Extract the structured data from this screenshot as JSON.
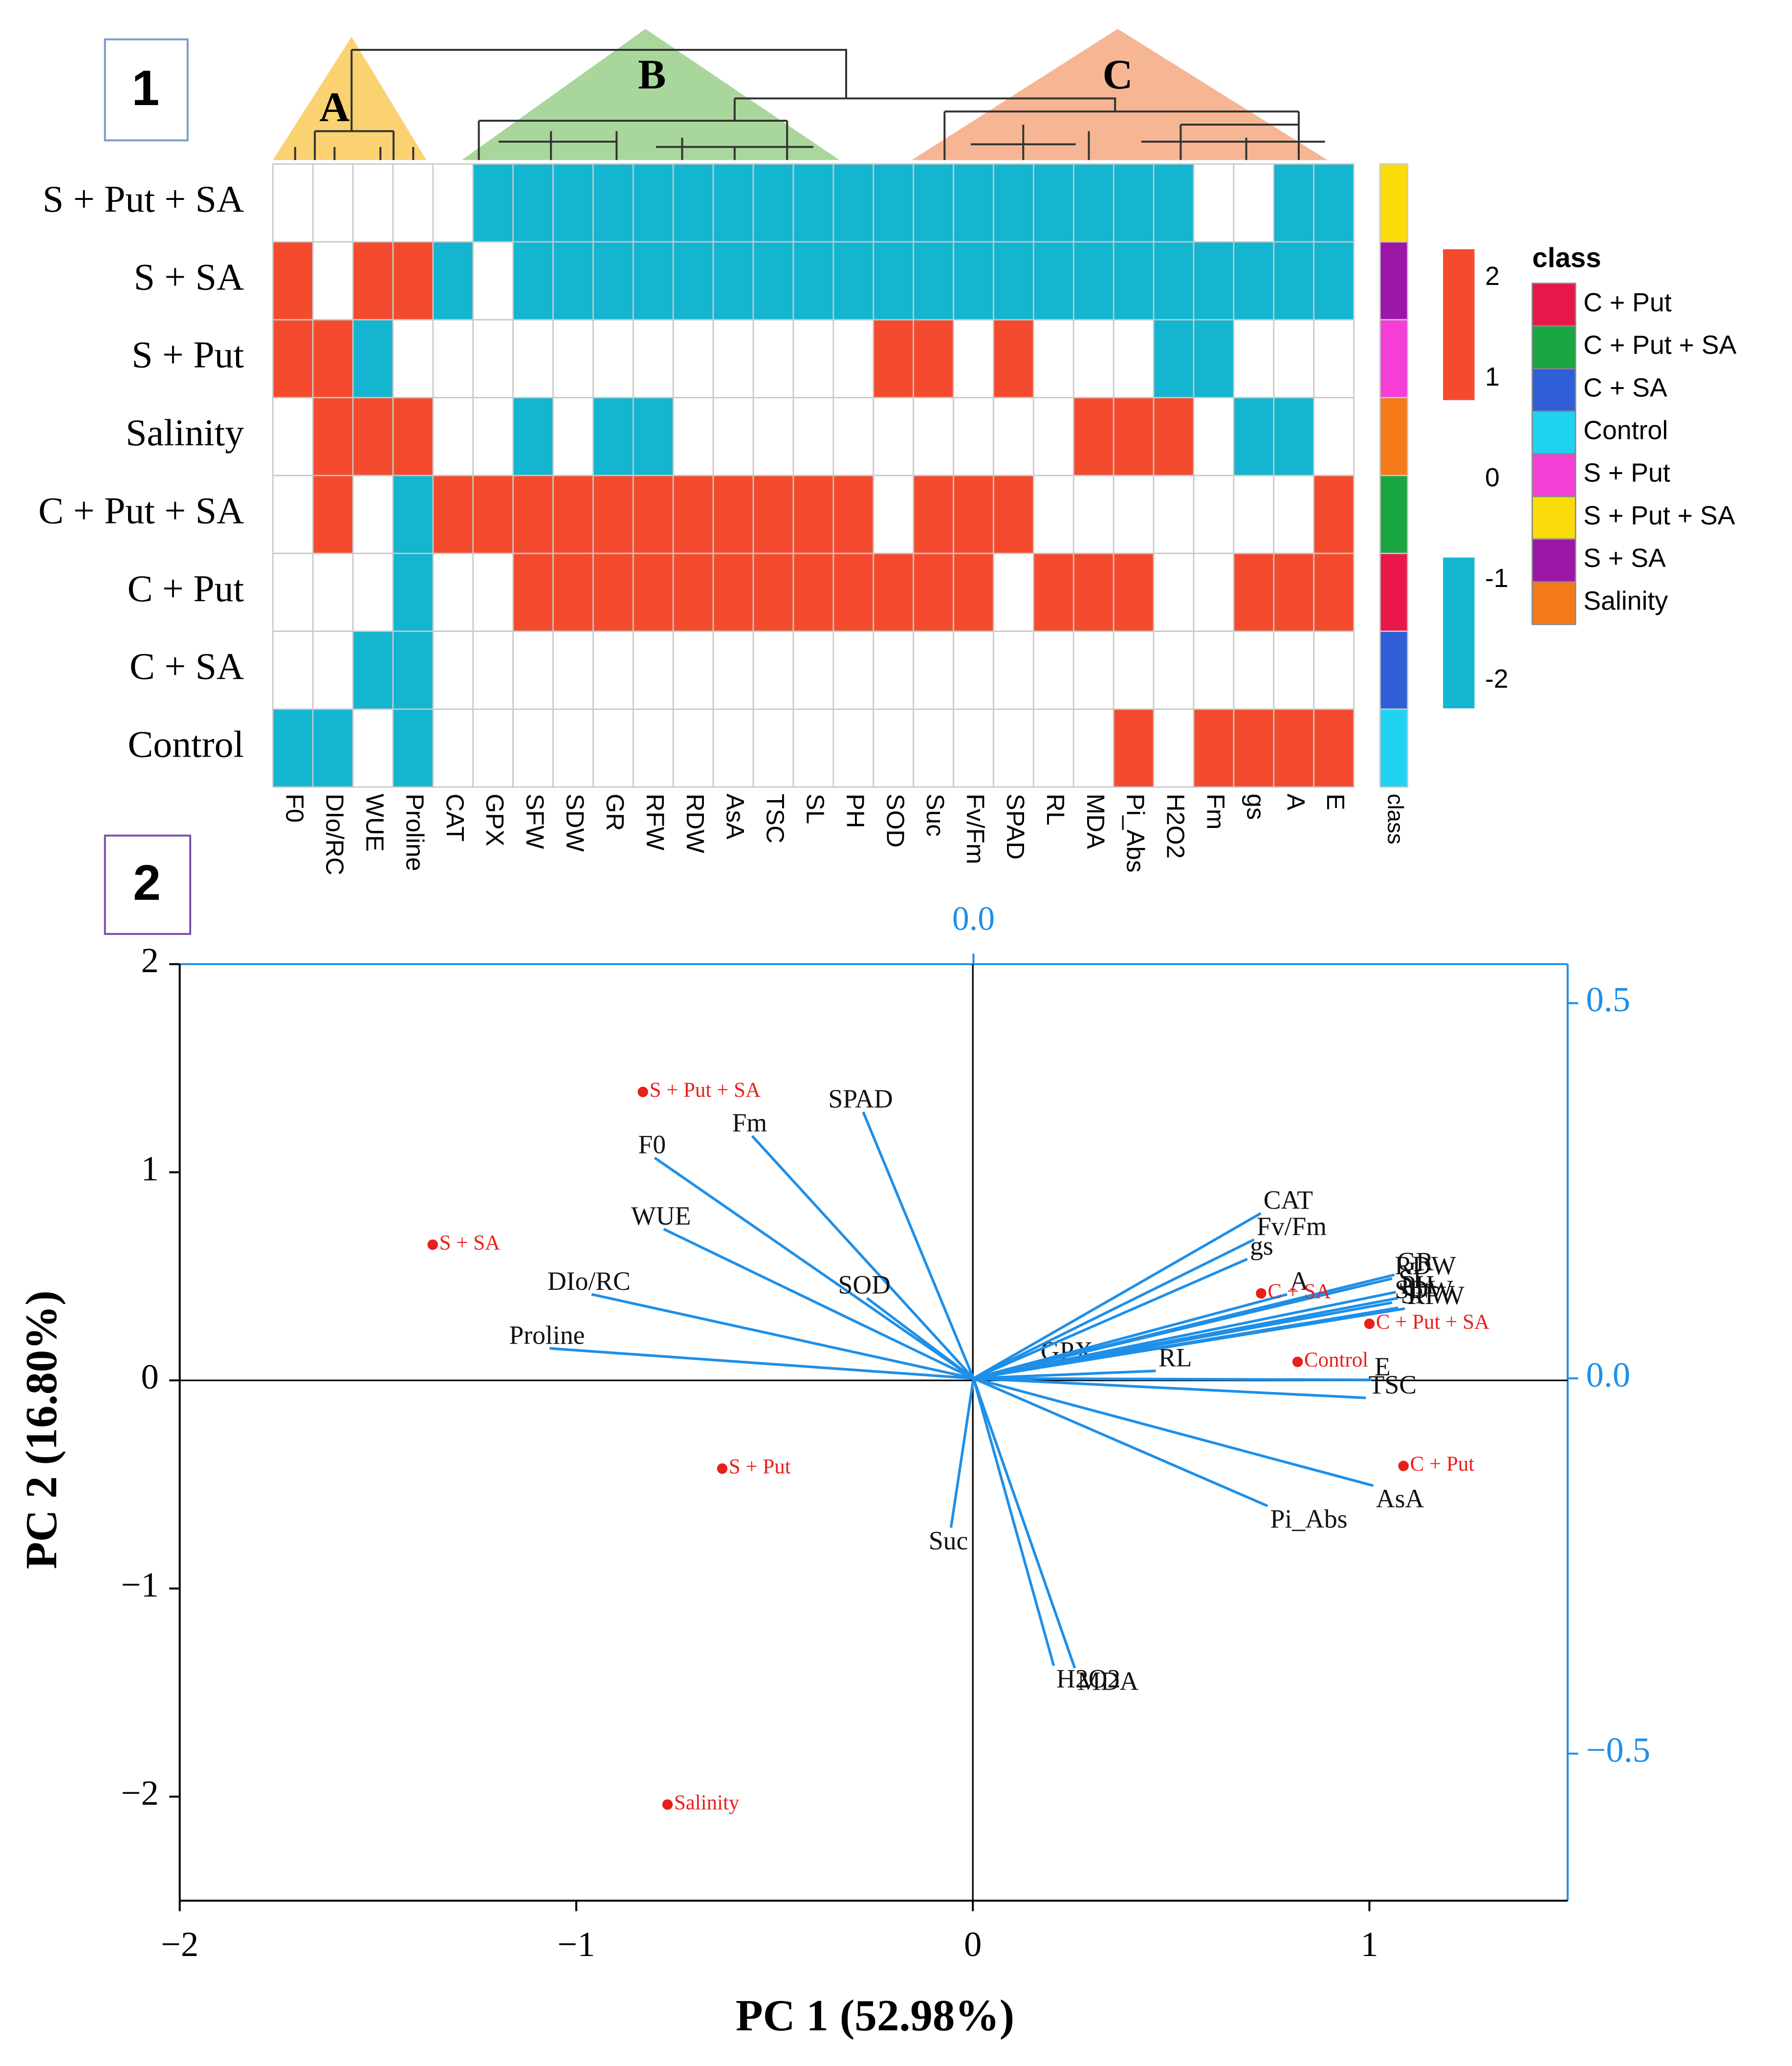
{
  "chart_data": [
    {
      "type": "heatmap",
      "panel": "1",
      "rows": [
        "S + Put + SA",
        "S + SA",
        "S + Put",
        "Salinity",
        "C + Put + SA",
        "C + Put",
        "C + SA",
        "Control"
      ],
      "columns": [
        "F0",
        "DIo/RC",
        "WUE",
        "Proline",
        "CAT",
        "GPX",
        "SFW",
        "SDW",
        "GR",
        "RFW",
        "RDW",
        "AsA",
        "TSC",
        "SL",
        "PH",
        "SOD",
        "Suc",
        "Fv/Fm",
        "SPAD",
        "RL",
        "MDA",
        "Pi_Abs",
        "H2O2",
        "Fm",
        "gs",
        "A",
        "E"
      ],
      "values": [
        [
          0,
          0,
          0,
          0,
          0,
          -1.5,
          -1.5,
          -1.5,
          -1.5,
          -1.5,
          -1.5,
          -1.5,
          -1.5,
          -1.5,
          -1.5,
          -1.5,
          -1.5,
          -1.5,
          -1.5,
          -1.5,
          -1.5,
          -1.5,
          -1.5,
          0,
          0,
          -1.5,
          -1.5
        ],
        [
          1.5,
          0,
          1.5,
          1.5,
          -1.5,
          0,
          -1.5,
          -1.5,
          -1.5,
          -1.5,
          -1.5,
          -1.5,
          -1.5,
          -1.5,
          -1.5,
          -1.5,
          -1.5,
          -1.5,
          -1.5,
          -1.5,
          -1.5,
          -1.5,
          -1.5,
          -1.5,
          -1.5,
          -1.5,
          -1.5
        ],
        [
          1.5,
          1.5,
          -1.5,
          0,
          0,
          0,
          0,
          0,
          0,
          0,
          0,
          0,
          0,
          0,
          0,
          1.5,
          1.5,
          0,
          1.5,
          0,
          0,
          0,
          -1.5,
          -1.5,
          0,
          0,
          0
        ],
        [
          0,
          1.5,
          1.5,
          1.5,
          0,
          0,
          -1.5,
          0,
          -1.5,
          -1.5,
          0,
          0,
          0,
          0,
          0,
          0,
          0,
          0,
          0,
          0,
          1.5,
          1.5,
          1.5,
          0,
          -1.5,
          -1.5,
          0
        ],
        [
          0,
          1.5,
          0,
          -1.5,
          1.5,
          1.5,
          1.5,
          1.5,
          1.5,
          1.5,
          1.5,
          1.5,
          1.5,
          1.5,
          1.5,
          0,
          1.5,
          1.5,
          1.5,
          0,
          0,
          0,
          0,
          0,
          0,
          0,
          1.5
        ],
        [
          0,
          0,
          0,
          -1.5,
          0,
          0,
          1.5,
          1.5,
          1.5,
          1.5,
          1.5,
          1.5,
          1.5,
          1.5,
          1.5,
          1.5,
          1.5,
          1.5,
          0,
          1.5,
          1.5,
          1.5,
          0,
          0,
          1.5,
          1.5,
          1.5
        ],
        [
          0,
          0,
          -1.5,
          -1.5,
          0,
          0,
          0,
          0,
          0,
          0,
          0,
          0,
          0,
          0,
          0,
          0,
          0,
          0,
          0,
          0,
          0,
          0,
          0,
          0,
          0,
          0,
          0
        ],
        [
          -1.5,
          -1.5,
          0,
          -1.5,
          0,
          0,
          0,
          0,
          0,
          0,
          0,
          0,
          0,
          0,
          0,
          0,
          0,
          0,
          0,
          0,
          0,
          1.5,
          0,
          1.5,
          1.5,
          1.5,
          1.5
        ]
      ],
      "colors": {
        "high": "#f44b2e",
        "low": "#13b5d0"
      },
      "colorbar_ticks": [
        2,
        1,
        0,
        -1,
        -2
      ],
      "class_label": "class",
      "legend_title": "class",
      "legend": [
        {
          "name": "C + Put",
          "color": "#e8174a"
        },
        {
          "name": "C + Put + SA",
          "color": "#1aa640"
        },
        {
          "name": "C + SA",
          "color": "#2f5fd6"
        },
        {
          "name": "Control",
          "color": "#1fd3f0"
        },
        {
          "name": "S + Put",
          "color": "#f53ed6"
        },
        {
          "name": "S + Put + SA",
          "color": "#fbdc0a"
        },
        {
          "name": "S + SA",
          "color": "#9c16a8"
        },
        {
          "name": "Salinity",
          "color": "#f57a1a"
        }
      ],
      "clusters": [
        "A",
        "B",
        "C"
      ]
    },
    {
      "type": "biplot",
      "panel": "2",
      "xlabel": "PC 1 (52.98%)",
      "ylabel": "PC 2 (16.80%)",
      "xlim": [
        -2,
        1.5
      ],
      "ylim": [
        -2.5,
        2
      ],
      "xticks": [
        {
          "value": -2,
          "label": "−2"
        },
        {
          "value": -1,
          "label": "−1"
        },
        0,
        1
      ],
      "yticks": [
        {
          "value": -2,
          "label": "−2"
        },
        {
          "value": -1,
          "label": "−1"
        },
        0,
        1,
        2
      ],
      "x2lim": [
        -1.058,
        0.792
      ],
      "y2lim": [
        -0.696,
        0.552
      ],
      "x2ticks": [
        {
          "value": 0,
          "label": "0.0"
        }
      ],
      "y2ticks": [
        {
          "value": 0.5,
          "label": "0.5"
        },
        {
          "value": 0,
          "label": "0.0"
        },
        {
          "value": -0.5,
          "label": "−0.5"
        }
      ],
      "scores": {
        "color": "#e8201a",
        "names": [
          "S + Put + SA",
          "S + SA",
          "S + Put",
          "Salinity",
          "C + SA",
          "Control",
          "C + Put + SA",
          "C + Put"
        ],
        "x": [
          -0.832,
          -1.362,
          -0.632,
          -0.77,
          0.727,
          0.819,
          1.0,
          1.086
        ],
        "y": [
          1.386,
          0.652,
          -0.424,
          -2.038,
          0.418,
          0.089,
          0.272,
          -0.411
        ]
      },
      "loadings": {
        "color": "#1e8fe8",
        "names": [
          "F0",
          "Fm",
          "SPAD",
          "WUE",
          "DIo/RC",
          "Proline",
          "SOD",
          "Suc",
          "H2O2",
          "MDA",
          "Pi_Abs",
          "AsA",
          "TSC",
          "E",
          "RL",
          "GPX",
          "CAT",
          "Fv/Fm",
          "gs",
          "A",
          "RDW",
          "GR",
          "SL",
          "PH",
          "SDW",
          "SFW",
          "RFW"
        ],
        "x": [
          -0.425,
          -0.295,
          -0.147,
          -0.413,
          -0.509,
          -0.565,
          -0.142,
          -0.03,
          0.107,
          0.135,
          0.392,
          0.533,
          0.523,
          0.531,
          0.243,
          0.086,
          0.383,
          0.374,
          0.365,
          0.418,
          0.558,
          0.561,
          0.563,
          0.566,
          0.558,
          0.566,
          0.575
        ],
        "y": [
          0.294,
          0.323,
          0.355,
          0.199,
          0.112,
          0.04,
          0.107,
          -0.199,
          -0.383,
          -0.386,
          -0.17,
          -0.143,
          -0.026,
          -0.002,
          0.01,
          0.019,
          0.22,
          0.185,
          0.159,
          0.112,
          0.133,
          0.138,
          0.115,
          0.107,
          0.101,
          0.094,
          0.093
        ]
      }
    }
  ]
}
